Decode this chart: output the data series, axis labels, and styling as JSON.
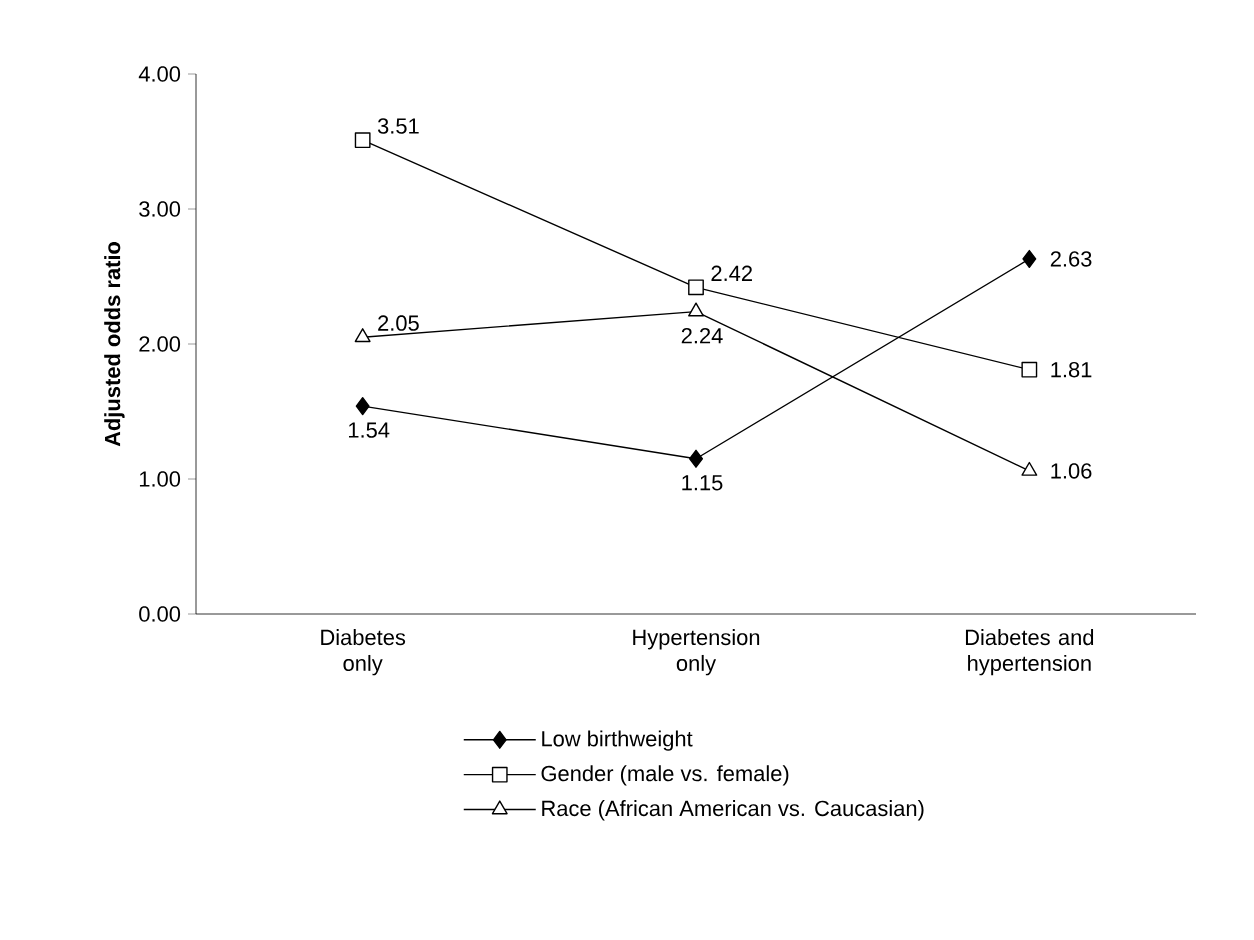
{
  "chart_data": {
    "type": "line",
    "ylabel": "Adjusted odds ratio",
    "categories": [
      "Diabetes only",
      "Hypertension only",
      "Diabetes and hypertension"
    ],
    "series": [
      {
        "name": "Low birthweight",
        "color": "#000000",
        "marker": "diamond",
        "values": [
          1.54,
          1.15,
          2.63
        ]
      },
      {
        "name": "Gender (male vs. female)",
        "color": "#000000",
        "marker": "square",
        "values": [
          3.51,
          2.42,
          1.81
        ]
      },
      {
        "name": "Race (African American vs. Caucasian)",
        "color": "#000000",
        "marker": "triangle",
        "values": [
          2.05,
          2.24,
          1.06
        ]
      }
    ],
    "ylim": [
      0,
      4
    ],
    "yticks": [
      {
        "value": 0,
        "label": "0.00"
      },
      {
        "value": 1,
        "label": "1.00"
      },
      {
        "value": 2,
        "label": "2.00"
      },
      {
        "value": 3,
        "label": "3.00"
      },
      {
        "value": 4,
        "label": "4.00"
      }
    ],
    "data_labels": true,
    "legend": "bottom",
    "grid": false,
    "line_style": "solid"
  }
}
